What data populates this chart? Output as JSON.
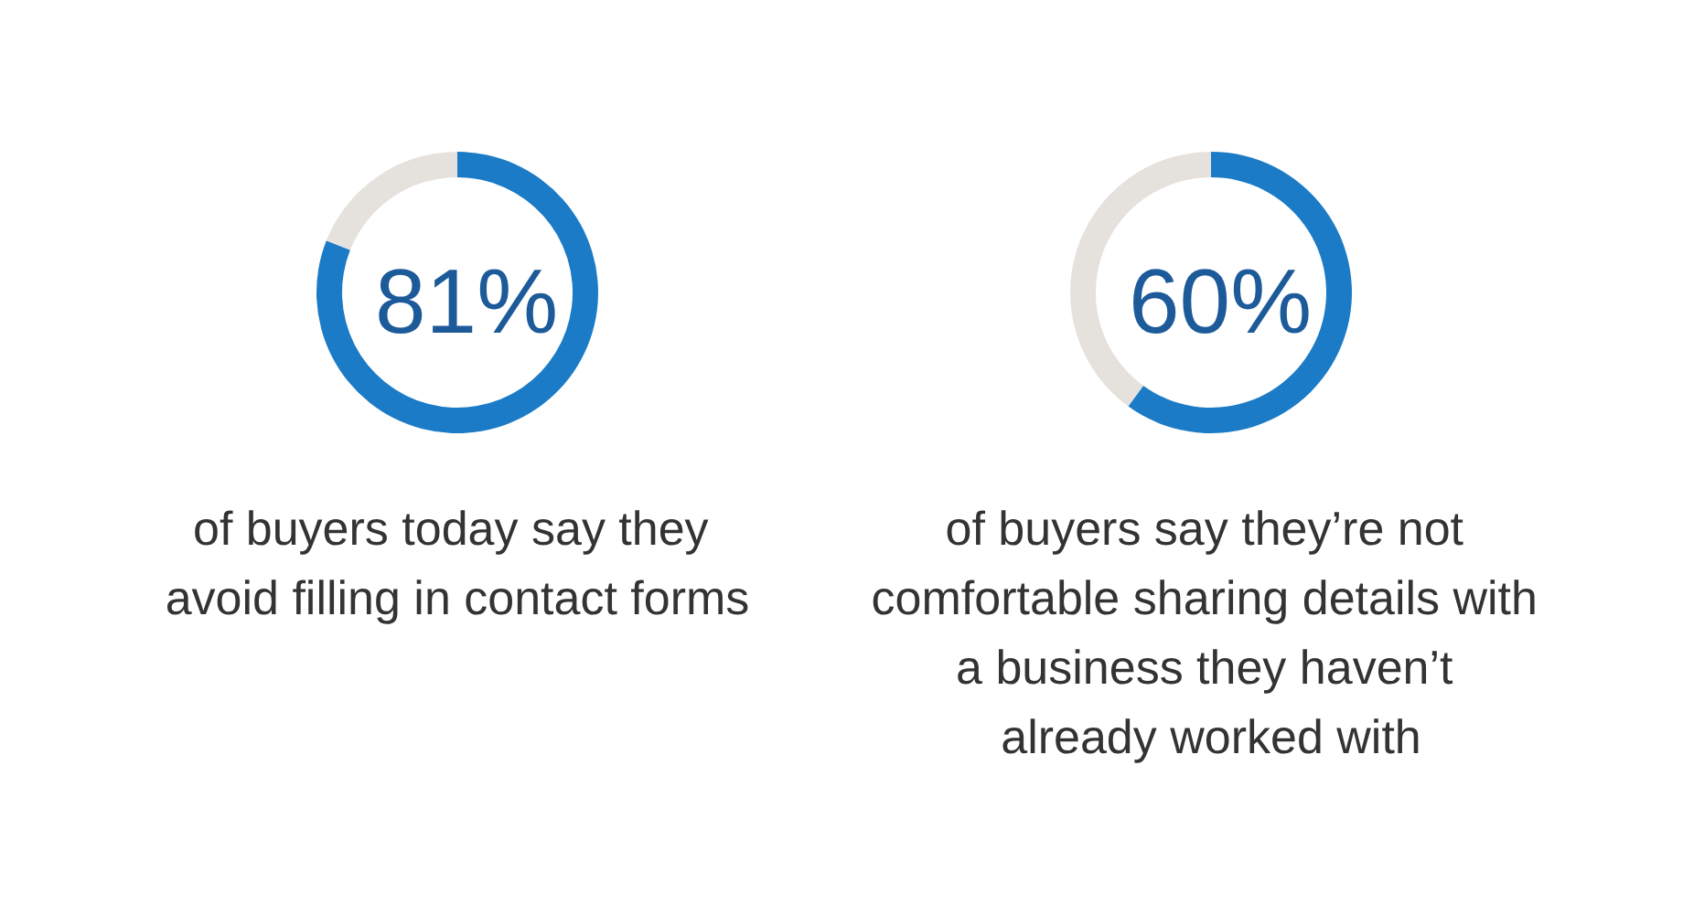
{
  "chart_data": [
    {
      "type": "donut",
      "title": "81%",
      "categories": [
        null,
        null
      ],
      "values": [
        81,
        19
      ],
      "colors": [
        "#1b7bc6",
        "#e5e2dd"
      ],
      "annotations": [
        "of buyers today say they avoid filling in contact forms"
      ]
    },
    {
      "type": "donut",
      "title": "60%",
      "categories": [
        null,
        null
      ],
      "values": [
        60,
        40
      ],
      "colors": [
        "#1b7bc6",
        "#e5e2dd"
      ],
      "annotations": [
        "of buyers say they’re not comfortable sharing details with a business they haven’t already worked with"
      ]
    }
  ]
}
